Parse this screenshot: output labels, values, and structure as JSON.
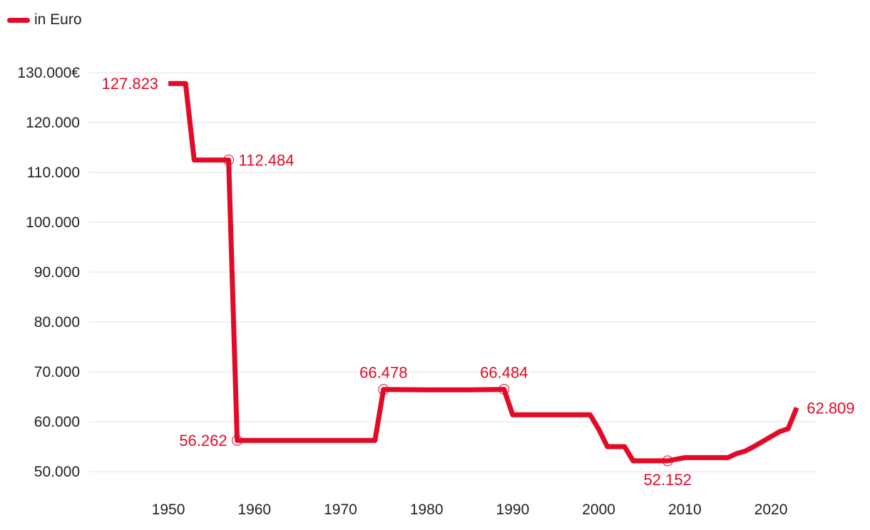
{
  "chart_data": {
    "type": "line",
    "title": "",
    "xlabel": "",
    "ylabel": "",
    "legend": {
      "label": "in Euro",
      "position": "top-left"
    },
    "colors": {
      "series": "#e30a27",
      "grid": "#e2e2e2",
      "text": "#222222"
    },
    "xlim": [
      1940.8,
      2025.3
    ],
    "ylim": [
      50000,
      132000
    ],
    "x_ticks": [
      1950,
      1960,
      1970,
      1980,
      1990,
      2000,
      2010,
      2020
    ],
    "x_tick_labels": [
      "1950",
      "1960",
      "1970",
      "1980",
      "1990",
      "2000",
      "2010",
      "2020"
    ],
    "y_ticks": [
      130000,
      120000,
      110000,
      100000,
      90000,
      80000,
      70000,
      60000,
      50000
    ],
    "y_tick_labels": [
      "130.000€",
      "120.000",
      "110.000",
      "100.000",
      "90.000",
      "80.000",
      "70.000",
      "60.000",
      "50.000"
    ],
    "series": [
      {
        "name": "in Euro",
        "x": [
          1950,
          1952,
          1953,
          1957,
          1958,
          1974,
          1975,
          1980,
          1985,
          1989,
          1990,
          1999,
          2000,
          2001,
          2003,
          2004,
          2008,
          2010,
          2015,
          2016,
          2017,
          2018,
          2019,
          2020,
          2021,
          2022,
          2023
        ],
        "values": [
          127823,
          127823,
          112484,
          112484,
          56262,
          56262,
          66478,
          66400,
          66400,
          66484,
          61400,
          61400,
          58500,
          55000,
          55000,
          52152,
          52152,
          52800,
          52800,
          53600,
          54100,
          55000,
          56000,
          57000,
          58000,
          58600,
          62809
        ]
      }
    ],
    "annotations": [
      {
        "x": 1950,
        "y": 127823,
        "label": "127.823",
        "anchor": "left",
        "marker": false
      },
      {
        "x": 1957,
        "y": 112484,
        "label": "112.484",
        "anchor": "right",
        "marker": true
      },
      {
        "x": 1958,
        "y": 56262,
        "label": "56.262",
        "anchor": "left",
        "marker": true
      },
      {
        "x": 1975,
        "y": 66478,
        "label": "66.478",
        "anchor": "above",
        "marker": true
      },
      {
        "x": 1989,
        "y": 66484,
        "label": "66.484",
        "anchor": "above",
        "marker": true
      },
      {
        "x": 2008,
        "y": 52152,
        "label": "52.152",
        "anchor": "below",
        "marker": true
      },
      {
        "x": 2023,
        "y": 62809,
        "label": "62.809",
        "anchor": "right",
        "marker": false
      }
    ]
  }
}
